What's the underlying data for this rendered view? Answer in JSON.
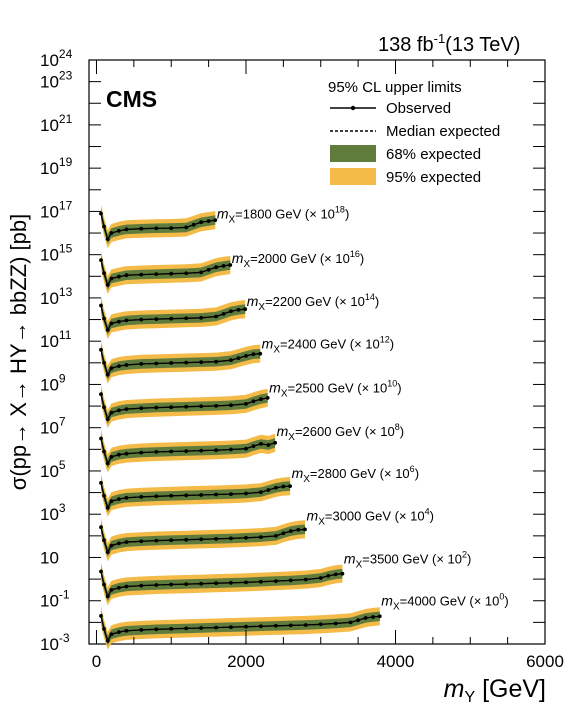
{
  "header": {
    "lumi": "138 fb",
    "lumi_sup": "-1",
    "energy": "(13 TeV)",
    "experiment": "CMS"
  },
  "axes": {
    "ylabel": "σ(pp→ X→ HY→ bbZZ) [pb]",
    "xlabel_italic": "m",
    "xlabel_sub": "Y",
    "xlabel_unit": " [GeV]"
  },
  "legend": {
    "title": "95% CL upper limits",
    "observed": "Observed",
    "median": "Median expected",
    "band68": "68% expected",
    "band95": "95% expected"
  },
  "chart_data": {
    "type": "line",
    "xlim": [
      -100,
      6000
    ],
    "ylim_log10": [
      -3,
      24
    ],
    "ylog": true,
    "x_ticks": [
      {
        "value": 0,
        "label": "0"
      },
      {
        "value": 2000,
        "label": "2000"
      },
      {
        "value": 4000,
        "label": "4000"
      },
      {
        "value": 6000,
        "label": "6000"
      }
    ],
    "y_ticks": [
      {
        "exp": -3,
        "base": "10",
        "sup": "-3"
      },
      {
        "exp": -1,
        "base": "10",
        "sup": "-1"
      },
      {
        "exp": 1,
        "base": "10",
        "sup": ""
      },
      {
        "exp": 3,
        "base": "10",
        "sup": "3"
      },
      {
        "exp": 5,
        "base": "10",
        "sup": "5"
      },
      {
        "exp": 7,
        "base": "10",
        "sup": "7"
      },
      {
        "exp": 9,
        "base": "10",
        "sup": "9"
      },
      {
        "exp": 11,
        "base": "10",
        "sup": "11"
      },
      {
        "exp": 13,
        "base": "10",
        "sup": "13"
      },
      {
        "exp": 15,
        "base": "10",
        "sup": "15"
      },
      {
        "exp": 17,
        "base": "10",
        "sup": "17"
      },
      {
        "exp": 19,
        "base": "10",
        "sup": "19"
      },
      {
        "exp": 21,
        "base": "10",
        "sup": "21"
      },
      {
        "exp": 23,
        "base": "10",
        "sup": "23"
      },
      {
        "exp": 24,
        "base": "10",
        "sup": "24"
      }
    ],
    "series": [
      {
        "mx": "1800",
        "scale_sup": "18",
        "label_x": 1610,
        "label_y_log": 16.9,
        "x": [
          60,
          100,
          150,
          200,
          300,
          400,
          600,
          800,
          1000,
          1200,
          1300,
          1400,
          1500,
          1590
        ],
        "y_log": [
          16.9,
          16.3,
          15.72,
          16.0,
          16.1,
          16.17,
          16.2,
          16.22,
          16.23,
          16.26,
          16.38,
          16.5,
          16.55,
          16.6
        ]
      },
      {
        "mx": "2000",
        "scale_sup": "16",
        "label_x": 1810,
        "label_y_log": 14.85,
        "x": [
          60,
          100,
          150,
          200,
          300,
          400,
          600,
          800,
          1000,
          1200,
          1400,
          1500,
          1600,
          1700,
          1790
        ],
        "y_log": [
          14.75,
          14.15,
          13.6,
          13.9,
          13.98,
          14.05,
          14.08,
          14.1,
          14.12,
          14.14,
          14.18,
          14.3,
          14.42,
          14.48,
          14.52
        ]
      },
      {
        "mx": "2200",
        "scale_sup": "14",
        "label_x": 2010,
        "label_y_log": 12.85,
        "x": [
          60,
          100,
          150,
          200,
          300,
          400,
          600,
          800,
          1000,
          1200,
          1400,
          1600,
          1700,
          1800,
          1900,
          1990
        ],
        "y_log": [
          12.65,
          12.05,
          11.52,
          11.82,
          11.9,
          11.96,
          12.0,
          12.02,
          12.04,
          12.06,
          12.08,
          12.14,
          12.26,
          12.38,
          12.45,
          12.48
        ]
      },
      {
        "mx": "2400",
        "scale_sup": "12",
        "label_x": 2210,
        "label_y_log": 10.9,
        "x": [
          60,
          100,
          150,
          200,
          300,
          400,
          600,
          800,
          1000,
          1200,
          1400,
          1600,
          1800,
          1900,
          2000,
          2100,
          2190
        ],
        "y_log": [
          10.6,
          10.0,
          9.45,
          9.75,
          9.85,
          9.9,
          9.95,
          9.97,
          9.99,
          10.01,
          10.03,
          10.05,
          10.12,
          10.22,
          10.32,
          10.4,
          10.42
        ]
      },
      {
        "mx": "2500",
        "scale_sup": "10",
        "label_x": 2310,
        "label_y_log": 8.85,
        "x": [
          60,
          100,
          150,
          200,
          300,
          400,
          600,
          800,
          1000,
          1200,
          1400,
          1600,
          1800,
          2000,
          2100,
          2200,
          2290
        ],
        "y_log": [
          8.55,
          7.95,
          7.4,
          7.7,
          7.8,
          7.86,
          7.9,
          7.93,
          7.95,
          7.97,
          7.99,
          8.01,
          8.04,
          8.1,
          8.22,
          8.32,
          8.38
        ]
      },
      {
        "mx": "2600",
        "scale_sup": "8",
        "label_x": 2410,
        "label_y_log": 6.85,
        "x": [
          60,
          100,
          150,
          200,
          300,
          400,
          600,
          800,
          1000,
          1200,
          1400,
          1600,
          1800,
          2000,
          2100,
          2200,
          2300,
          2390
        ],
        "y_log": [
          6.5,
          5.9,
          5.35,
          5.65,
          5.75,
          5.8,
          5.85,
          5.88,
          5.9,
          5.92,
          5.94,
          5.96,
          5.99,
          6.03,
          6.15,
          6.25,
          6.2,
          6.3
        ]
      },
      {
        "mx": "2800",
        "scale_sup": "6",
        "label_x": 2610,
        "label_y_log": 4.9,
        "x": [
          60,
          100,
          150,
          200,
          300,
          400,
          600,
          800,
          1000,
          1200,
          1400,
          1600,
          1800,
          2000,
          2200,
          2300,
          2400,
          2500,
          2590
        ],
        "y_log": [
          4.45,
          3.85,
          3.3,
          3.6,
          3.7,
          3.76,
          3.8,
          3.83,
          3.85,
          3.87,
          3.89,
          3.91,
          3.93,
          3.96,
          4.02,
          4.12,
          4.22,
          4.28,
          4.3
        ]
      },
      {
        "mx": "3000",
        "scale_sup": "4",
        "label_x": 2810,
        "label_y_log": 2.95,
        "x": [
          60,
          100,
          150,
          200,
          300,
          400,
          600,
          800,
          1000,
          1200,
          1400,
          1600,
          1800,
          2000,
          2200,
          2400,
          2500,
          2600,
          2700,
          2790
        ],
        "y_log": [
          2.4,
          1.8,
          1.25,
          1.55,
          1.65,
          1.71,
          1.75,
          1.78,
          1.8,
          1.82,
          1.84,
          1.86,
          1.88,
          1.91,
          1.94,
          2.0,
          2.12,
          2.22,
          2.28,
          2.3
        ]
      },
      {
        "mx": "3500",
        "scale_sup": "2",
        "label_x": 3310,
        "label_y_log": 0.95,
        "x": [
          60,
          100,
          150,
          200,
          300,
          400,
          600,
          800,
          1000,
          1200,
          1400,
          1600,
          1800,
          2000,
          2200,
          2400,
          2600,
          2800,
          3000,
          3100,
          3200,
          3290
        ],
        "y_log": [
          0.35,
          -0.25,
          -0.8,
          -0.5,
          -0.4,
          -0.34,
          -0.3,
          -0.27,
          -0.25,
          -0.23,
          -0.21,
          -0.19,
          -0.17,
          -0.15,
          -0.12,
          -0.09,
          -0.06,
          -0.02,
          0.05,
          0.15,
          0.22,
          0.25
        ]
      },
      {
        "mx": "4000",
        "scale_sup": "0",
        "label_x": 3810,
        "label_y_log": -1.0,
        "x": [
          60,
          100,
          150,
          200,
          300,
          400,
          600,
          800,
          1000,
          1200,
          1400,
          1600,
          1800,
          2000,
          2200,
          2400,
          2600,
          2800,
          3000,
          3200,
          3400,
          3500,
          3600,
          3700,
          3790
        ],
        "y_log": [
          -1.7,
          -2.3,
          -2.85,
          -2.55,
          -2.45,
          -2.39,
          -2.35,
          -2.32,
          -2.3,
          -2.28,
          -2.26,
          -2.24,
          -2.22,
          -2.2,
          -2.18,
          -2.16,
          -2.14,
          -2.12,
          -2.09,
          -2.05,
          -2.0,
          -1.9,
          -1.8,
          -1.75,
          -1.72
        ]
      }
    ]
  },
  "colors": {
    "band95": "#f4bb49",
    "band68": "#607c3c",
    "line": "#000000"
  }
}
